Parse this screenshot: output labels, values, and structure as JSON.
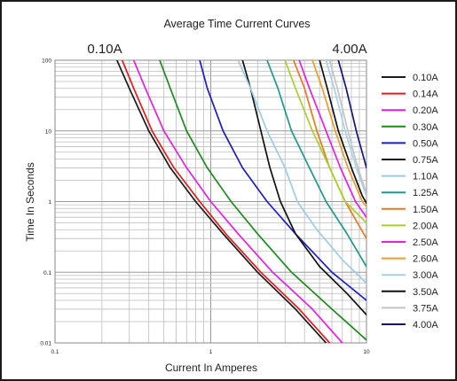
{
  "chart_data": {
    "type": "line",
    "title": "Average Time Current Curves",
    "xlabel": "Current In Amperes",
    "ylabel": "Time In Seconds",
    "corner_labels": {
      "left": "0.10A",
      "right": "4.00A"
    },
    "x_scale": "log",
    "y_scale": "log",
    "xlim": [
      0.1,
      10
    ],
    "ylim": [
      0.01,
      100
    ],
    "x_ticks": [
      "0.1",
      "1",
      "10"
    ],
    "y_ticks": [
      "0.01",
      "0.1",
      "1",
      "10",
      "100"
    ],
    "grid": true,
    "legend_position": "right",
    "series": [
      {
        "name": "0.10A",
        "color": "#1a1a1a",
        "x": [
          0.25,
          0.3,
          0.4,
          0.55,
          0.8,
          1.2,
          2.0,
          3.5,
          5.5
        ],
        "y": [
          100,
          40,
          10,
          3,
          1,
          0.35,
          0.1,
          0.03,
          0.01
        ]
      },
      {
        "name": "0.14A",
        "color": "#e8191e",
        "x": [
          0.27,
          0.32,
          0.42,
          0.58,
          0.85,
          1.25,
          2.1,
          3.7,
          5.8
        ],
        "y": [
          100,
          40,
          10,
          3,
          1,
          0.35,
          0.1,
          0.03,
          0.01
        ]
      },
      {
        "name": "0.20A",
        "color": "#e61ee6",
        "x": [
          0.32,
          0.38,
          0.5,
          0.7,
          1.0,
          1.5,
          2.5,
          4.5,
          7.0
        ],
        "y": [
          100,
          40,
          10,
          3,
          1,
          0.35,
          0.1,
          0.03,
          0.01
        ]
      },
      {
        "name": "0.30A",
        "color": "#1c8c1c",
        "x": [
          0.47,
          0.55,
          0.7,
          0.95,
          1.35,
          2.0,
          3.3,
          6.0,
          10.0
        ],
        "y": [
          100,
          40,
          10,
          3,
          1,
          0.35,
          0.1,
          0.03,
          0.011
        ]
      },
      {
        "name": "0.50A",
        "color": "#1c1cc8",
        "x": [
          0.85,
          0.95,
          1.2,
          1.6,
          2.3,
          3.5,
          6.0,
          10.0
        ],
        "y": [
          100,
          40,
          10,
          3,
          1,
          0.35,
          0.1,
          0.04
        ]
      },
      {
        "name": "0.75A",
        "color": "#111111",
        "x": [
          1.6,
          1.8,
          2.1,
          2.4,
          2.8,
          3.5,
          5.0,
          7.5,
          10.0
        ],
        "y": [
          100,
          40,
          10,
          3,
          1,
          0.35,
          0.12,
          0.05,
          0.025
        ]
      },
      {
        "name": "1.10A",
        "color": "#9ccbe9",
        "x": [
          1.5,
          1.8,
          2.3,
          3.0,
          3.6,
          4.8,
          7.0,
          10.0
        ],
        "y": [
          100,
          40,
          10,
          3,
          1,
          0.4,
          0.15,
          0.07
        ]
      },
      {
        "name": "1.25A",
        "color": "#1e9a8a",
        "x": [
          2.3,
          2.7,
          3.3,
          4.3,
          5.5,
          7.5,
          10.0
        ],
        "y": [
          100,
          40,
          10,
          3,
          1,
          0.35,
          0.12
        ]
      },
      {
        "name": "1.50A",
        "color": "#e9781e",
        "x": [
          3.4,
          4.0,
          4.8,
          5.8,
          7.3,
          10.0
        ],
        "y": [
          100,
          40,
          10,
          3,
          1,
          0.3
        ]
      },
      {
        "name": "2.00A",
        "color": "#a6d12a",
        "x": [
          3.0,
          3.5,
          4.5,
          5.8,
          7.3,
          10.0
        ],
        "y": [
          100,
          40,
          10,
          3,
          1,
          0.5
        ]
      },
      {
        "name": "2.50A",
        "color": "#e61ee6",
        "x": [
          3.7,
          4.3,
          5.5,
          6.8,
          8.5,
          10.0
        ],
        "y": [
          100,
          40,
          10,
          3,
          1,
          0.6
        ]
      },
      {
        "name": "2.60A",
        "color": "#ee9a2e",
        "x": [
          4.5,
          5.2,
          6.3,
          7.6,
          9.4,
          10.0
        ],
        "y": [
          100,
          40,
          10,
          3,
          1,
          0.85
        ]
      },
      {
        "name": "3.00A",
        "color": "#a8d0ea",
        "x": [
          5.5,
          6.2,
          7.3,
          8.6,
          10.0
        ],
        "y": [
          100,
          40,
          10,
          3,
          1.2
        ]
      },
      {
        "name": "3.50A",
        "color": "#111111",
        "x": [
          5.0,
          5.6,
          6.6,
          8.0,
          9.4,
          10.0
        ],
        "y": [
          100,
          40,
          10,
          3,
          1.2,
          0.95
        ]
      },
      {
        "name": "3.75A",
        "color": "#c4c4c4",
        "x": [
          5.8,
          6.5,
          7.6,
          8.8,
          10.0
        ],
        "y": [
          100,
          40,
          10,
          3,
          1.3
        ]
      },
      {
        "name": "4.00A",
        "color": "#141478",
        "x": [
          6.6,
          7.4,
          8.6,
          10.0
        ],
        "y": [
          100,
          40,
          10,
          3
        ]
      }
    ]
  }
}
